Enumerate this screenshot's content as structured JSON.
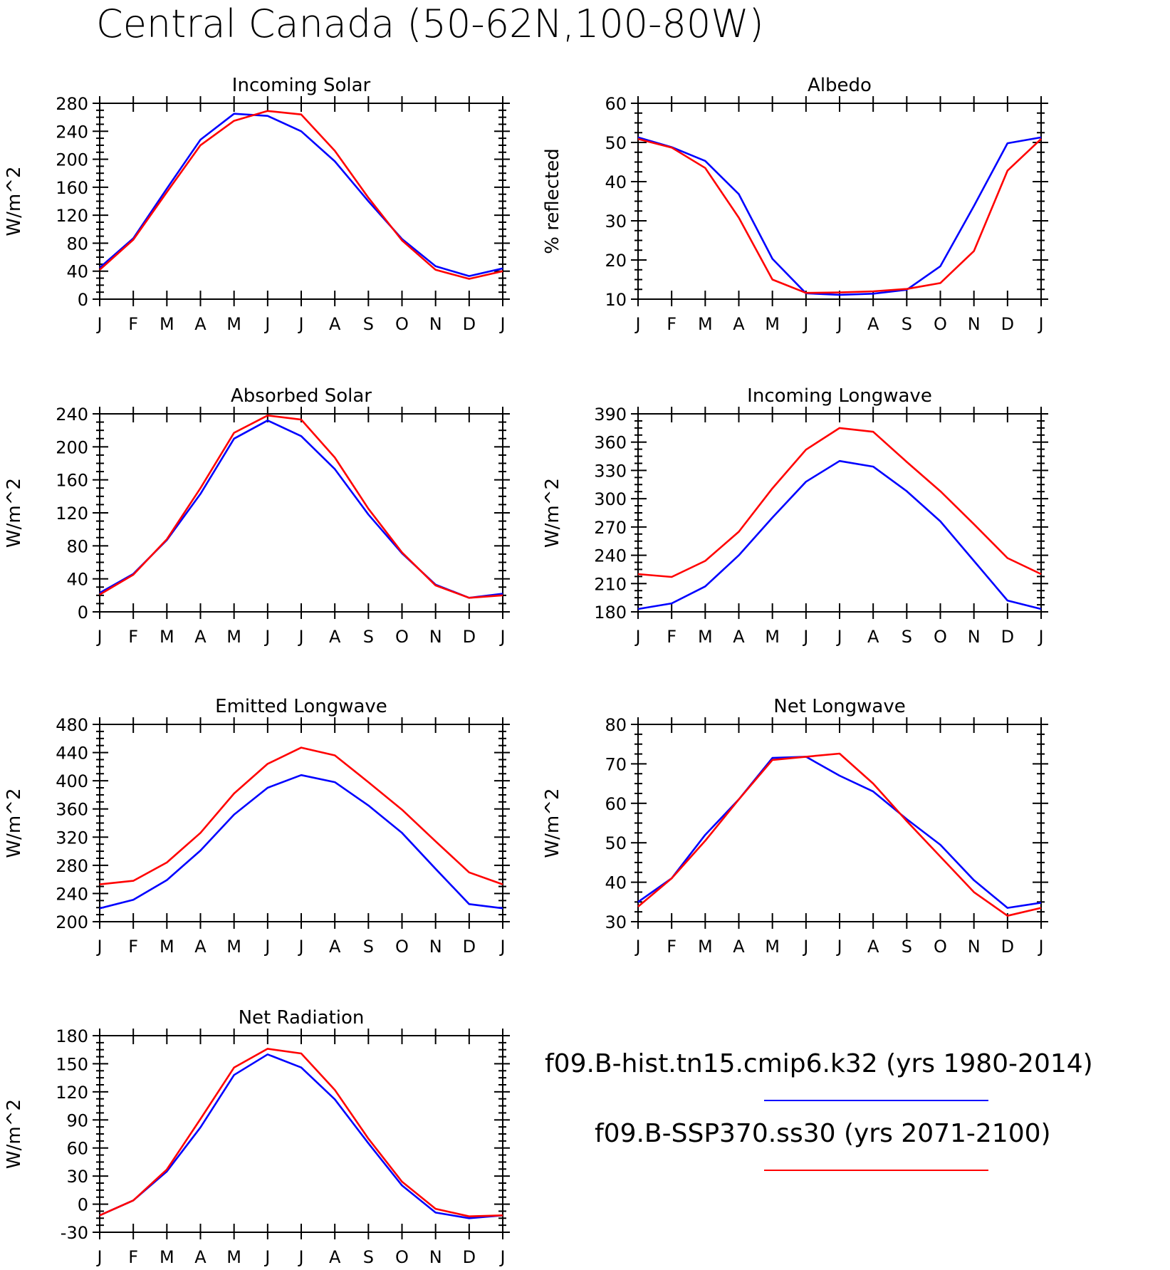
{
  "main_title": "Central Canada (50-62N,100-80W)",
  "months": [
    "J",
    "F",
    "M",
    "A",
    "M",
    "J",
    "J",
    "A",
    "S",
    "O",
    "N",
    "D",
    "J"
  ],
  "legend": [
    {
      "label": "f09.B-hist.tn15.cmip6.k32 (yrs 1980-2014)",
      "color": "#0000ff"
    },
    {
      "label": "f09.B-SSP370.ss30 (yrs 2071-2100)",
      "color": "#ff0000"
    }
  ],
  "chart_data": [
    {
      "type": "line",
      "title": "Incoming Solar",
      "ylabel": "W/m^2",
      "ylim": [
        0,
        280
      ],
      "yticks": [
        0,
        40,
        80,
        120,
        160,
        200,
        240,
        280
      ],
      "series": [
        {
          "color": "#0000ff",
          "values": [
            45,
            87,
            158,
            228,
            265,
            262,
            240,
            197,
            140,
            86,
            47,
            33,
            44
          ]
        },
        {
          "color": "#ff0000",
          "values": [
            42,
            85,
            153,
            220,
            255,
            269,
            264,
            212,
            145,
            84,
            42,
            29,
            40
          ]
        }
      ]
    },
    {
      "type": "line",
      "title": "Albedo",
      "ylabel": "% reflected",
      "ylim": [
        10,
        60
      ],
      "yticks": [
        10,
        20,
        30,
        40,
        50,
        60
      ],
      "series": [
        {
          "color": "#0000ff",
          "values": [
            51.3,
            48.8,
            45.3,
            36.8,
            20.3,
            11.5,
            11.1,
            11.4,
            12.4,
            18.4,
            33.8,
            49.8,
            51.3
          ]
        },
        {
          "color": "#ff0000",
          "values": [
            50.9,
            48.7,
            43.5,
            30.8,
            15.0,
            11.6,
            11.7,
            12.0,
            12.6,
            14.1,
            22.3,
            42.8,
            50.9
          ]
        }
      ]
    },
    {
      "type": "line",
      "title": "Absorbed Solar",
      "ylabel": "W/m^2",
      "ylim": [
        0,
        240
      ],
      "yticks": [
        0,
        40,
        80,
        120,
        160,
        200,
        240
      ],
      "series": [
        {
          "color": "#0000ff",
          "values": [
            23,
            46,
            87,
            143,
            210,
            232,
            213,
            173,
            118,
            71,
            33,
            17,
            22
          ]
        },
        {
          "color": "#ff0000",
          "values": [
            21,
            45,
            88,
            150,
            217,
            238,
            233,
            187,
            125,
            72,
            32,
            17,
            20
          ]
        }
      ]
    },
    {
      "type": "line",
      "title": "Incoming Longwave",
      "ylabel": "W/m^2",
      "ylim": [
        180,
        390
      ],
      "yticks": [
        180,
        210,
        240,
        270,
        300,
        330,
        360,
        390
      ],
      "series": [
        {
          "color": "#0000ff",
          "values": [
            183,
            189,
            207,
            240,
            280,
            318,
            340,
            334,
            308,
            276,
            234,
            192,
            183
          ]
        },
        {
          "color": "#ff0000",
          "values": [
            220,
            217,
            234,
            265,
            311,
            352,
            375,
            371,
            339,
            308,
            273,
            237,
            220
          ]
        }
      ]
    },
    {
      "type": "line",
      "title": "Emitted Longwave",
      "ylabel": "W/m^2",
      "ylim": [
        200,
        480
      ],
      "yticks": [
        200,
        240,
        280,
        320,
        360,
        400,
        440,
        480
      ],
      "series": [
        {
          "color": "#0000ff",
          "values": [
            219,
            231,
            259,
            301,
            352,
            390,
            408,
            398,
            365,
            326,
            275,
            225,
            219
          ]
        },
        {
          "color": "#ff0000",
          "values": [
            253,
            258,
            284,
            326,
            382,
            424,
            447,
            436,
            398,
            359,
            314,
            270,
            253
          ]
        }
      ]
    },
    {
      "type": "line",
      "title": "Net Longwave",
      "ylabel": "W/m^2",
      "ylim": [
        30,
        80
      ],
      "yticks": [
        30,
        40,
        50,
        60,
        70,
        80
      ],
      "series": [
        {
          "color": "#0000ff",
          "values": [
            35,
            41,
            52,
            61,
            71.5,
            71.8,
            67,
            63,
            56,
            49.5,
            40.5,
            33.5,
            34.8
          ]
        },
        {
          "color": "#ff0000",
          "values": [
            33.8,
            41,
            50.5,
            61,
            71,
            71.8,
            72.6,
            65,
            55.5,
            46.5,
            37.5,
            31.5,
            33.5
          ]
        }
      ]
    },
    {
      "type": "line",
      "title": "Net Radiation",
      "ylabel": "W/m^2",
      "ylim": [
        -30,
        180
      ],
      "yticks": [
        -30,
        0,
        30,
        60,
        90,
        120,
        150,
        180
      ],
      "series": [
        {
          "color": "#0000ff",
          "values": [
            -12,
            4,
            35,
            82,
            138,
            160,
            146,
            112,
            65,
            20,
            -9,
            -15,
            -12
          ]
        },
        {
          "color": "#ff0000",
          "values": [
            -12,
            4,
            37,
            91,
            146,
            166,
            161,
            122,
            70,
            24,
            -5,
            -13,
            -12
          ]
        }
      ]
    }
  ]
}
